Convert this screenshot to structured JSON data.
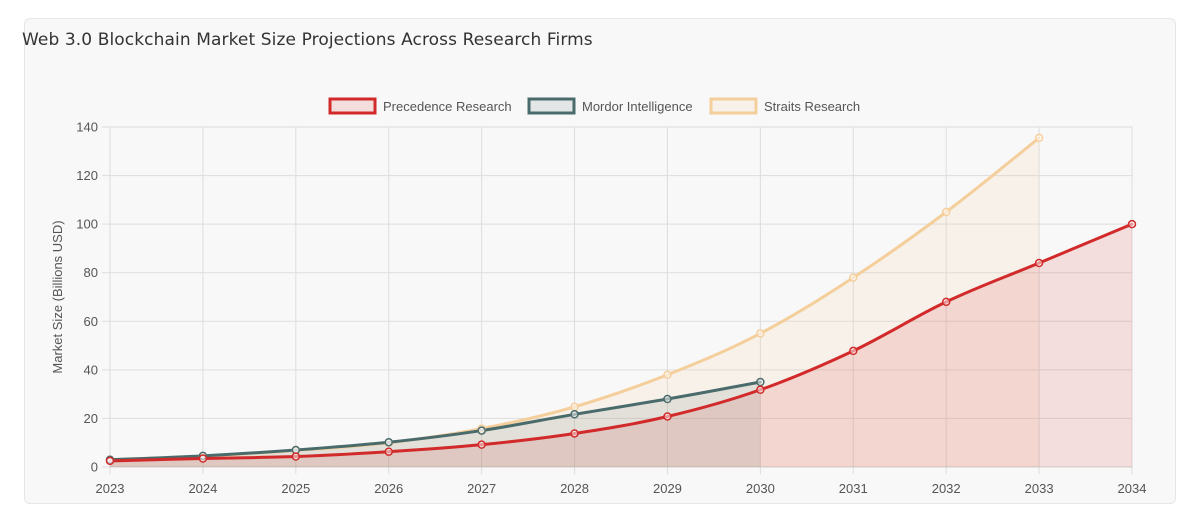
{
  "chart_data": {
    "type": "line",
    "title": "Web 3.0 Blockchain Market Size Projections Across Research Firms",
    "xlabel": "",
    "ylabel": "Market Size (Billions USD)",
    "categories": [
      "2023",
      "2024",
      "2025",
      "2026",
      "2027",
      "2028",
      "2029",
      "2030",
      "2031",
      "2032",
      "2033",
      "2034"
    ],
    "ylim": [
      0,
      140
    ],
    "yticks": [
      0,
      20,
      40,
      60,
      80,
      100,
      120,
      140
    ],
    "grid": true,
    "legend_position": "top-center",
    "series": [
      {
        "name": "Precedence Research",
        "color": "#d22a2a",
        "fill": "rgba(210,42,42,0.13)",
        "values": [
          2.5,
          3.5,
          4.3,
          6.3,
          9.2,
          13.8,
          20.8,
          31.8,
          47.8,
          68.0,
          84.0,
          100.0
        ]
      },
      {
        "name": "Mordor Intelligence",
        "color": "#4a6b6b",
        "fill": "rgba(74,107,107,0.12)",
        "values": [
          3.0,
          4.6,
          7.0,
          10.2,
          15.0,
          21.7,
          28.0,
          35.0,
          null,
          null,
          null,
          null
        ]
      },
      {
        "name": "Straits Research",
        "color": "#f5cf9b",
        "fill": "rgba(245,207,155,0.16)",
        "values": [
          3.0,
          4.5,
          6.8,
          10.0,
          15.8,
          24.8,
          38.0,
          55.0,
          78.0,
          105.0,
          135.5,
          null
        ]
      }
    ]
  }
}
